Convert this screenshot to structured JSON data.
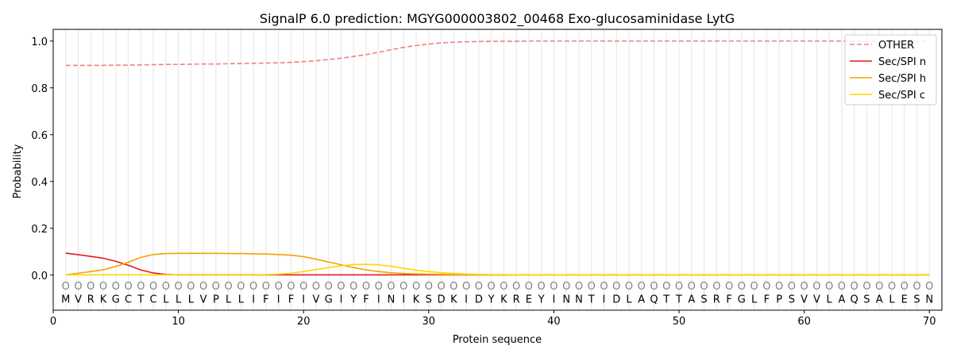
{
  "chart_data": {
    "type": "line",
    "title": "SignalP 6.0 prediction: MGYG000003802_00468 Exo-glucosaminidase LytG",
    "xlabel": "Protein sequence",
    "ylabel": "Probability",
    "xlim": [
      0,
      71
    ],
    "ylim": [
      -0.15,
      1.05
    ],
    "x_ticks": [
      0,
      10,
      20,
      30,
      40,
      50,
      60,
      70
    ],
    "y_ticks": [
      0.0,
      0.2,
      0.4,
      0.6,
      0.8,
      1.0
    ],
    "y_tick_labels": [
      "0.0",
      "0.2",
      "0.4",
      "0.6",
      "0.8",
      "1.0"
    ],
    "legend_position": "top-right",
    "sequence": [
      "M",
      "V",
      "R",
      "K",
      "G",
      "C",
      "T",
      "C",
      "L",
      "L",
      "L",
      "V",
      "P",
      "L",
      "L",
      "I",
      "F",
      "I",
      "F",
      "I",
      "V",
      "G",
      "I",
      "Y",
      "F",
      "I",
      "N",
      "I",
      "K",
      "S",
      "D",
      "K",
      "I",
      "D",
      "Y",
      "K",
      "R",
      "E",
      "Y",
      "I",
      "N",
      "N",
      "T",
      "I",
      "D",
      "L",
      "A",
      "Q",
      "T",
      "T",
      "A",
      "S",
      "R",
      "F",
      "G",
      "L",
      "F",
      "P",
      "S",
      "V",
      "V",
      "L",
      "A",
      "Q",
      "S",
      "A",
      "L",
      "E",
      "S",
      "N"
    ],
    "position_marker": "O",
    "series": [
      {
        "name": "OTHER",
        "color": "#f08080",
        "dashed": true,
        "values": [
          0.896,
          0.896,
          0.896,
          0.896,
          0.897,
          0.897,
          0.898,
          0.899,
          0.9,
          0.9,
          0.901,
          0.902,
          0.902,
          0.903,
          0.904,
          0.905,
          0.906,
          0.907,
          0.909,
          0.912,
          0.916,
          0.921,
          0.927,
          0.934,
          0.942,
          0.952,
          0.963,
          0.973,
          0.981,
          0.987,
          0.992,
          0.995,
          0.997,
          0.998,
          0.999,
          0.999,
          0.999,
          1.0,
          1.0,
          1.0,
          1.0,
          1.0,
          1.0,
          1.0,
          1.0,
          1.0,
          1.0,
          1.0,
          1.0,
          1.0,
          1.0,
          1.0,
          1.0,
          1.0,
          1.0,
          1.0,
          1.0,
          1.0,
          1.0,
          1.0,
          1.0,
          1.0,
          1.0,
          1.0,
          1.0,
          1.0,
          1.0,
          1.0,
          1.0,
          1.0
        ]
      },
      {
        "name": "Sec/SPI n",
        "color": "#e41a1c",
        "dashed": false,
        "values": [
          0.094,
          0.087,
          0.08,
          0.072,
          0.059,
          0.042,
          0.022,
          0.009,
          0.003,
          0.001,
          0.001,
          0.001,
          0.001,
          0.001,
          0.001,
          0.001,
          0.001,
          0.001,
          0.001,
          0.001,
          0.001,
          0.001,
          0.001,
          0.001,
          0.001,
          0.001,
          0.001,
          0.001,
          0.001,
          0.001,
          0.001,
          0.001,
          0.001,
          0.001,
          0.001,
          0.001,
          0.001,
          0.001,
          0.001,
          0.001,
          0.001,
          0.001,
          0.001,
          0.001,
          0.001,
          0.001,
          0.001,
          0.001,
          0.001,
          0.001,
          0.001,
          0.001,
          0.001,
          0.001,
          0.001,
          0.001,
          0.001,
          0.001,
          0.001,
          0.001,
          0.001,
          0.001,
          0.001,
          0.001,
          0.001,
          0.001,
          0.001,
          0.001,
          0.001,
          0.001
        ]
      },
      {
        "name": "Sec/SPI h",
        "color": "#f5a200",
        "dashed": false,
        "values": [
          0.001,
          0.008,
          0.015,
          0.023,
          0.037,
          0.055,
          0.076,
          0.088,
          0.092,
          0.093,
          0.093,
          0.093,
          0.093,
          0.092,
          0.092,
          0.091,
          0.09,
          0.088,
          0.085,
          0.079,
          0.068,
          0.056,
          0.044,
          0.032,
          0.022,
          0.015,
          0.01,
          0.007,
          0.005,
          0.004,
          0.003,
          0.002,
          0.002,
          0.001,
          0.001,
          0.001,
          0.001,
          0.001,
          0.001,
          0.001,
          0.001,
          0.001,
          0.001,
          0.001,
          0.001,
          0.001,
          0.001,
          0.001,
          0.001,
          0.001,
          0.001,
          0.001,
          0.001,
          0.001,
          0.001,
          0.001,
          0.001,
          0.001,
          0.001,
          0.001,
          0.001,
          0.001,
          0.001,
          0.001,
          0.001,
          0.001,
          0.001,
          0.001,
          0.001,
          0.001
        ]
      },
      {
        "name": "Sec/SPI c",
        "color": "#ffd700",
        "dashed": false,
        "values": [
          0.001,
          0.001,
          0.001,
          0.001,
          0.001,
          0.001,
          0.001,
          0.001,
          0.001,
          0.001,
          0.001,
          0.001,
          0.001,
          0.001,
          0.001,
          0.001,
          0.002,
          0.004,
          0.008,
          0.015,
          0.024,
          0.032,
          0.04,
          0.045,
          0.046,
          0.044,
          0.038,
          0.029,
          0.021,
          0.015,
          0.01,
          0.007,
          0.005,
          0.003,
          0.002,
          0.002,
          0.001,
          0.001,
          0.001,
          0.001,
          0.001,
          0.001,
          0.001,
          0.001,
          0.001,
          0.001,
          0.001,
          0.001,
          0.001,
          0.001,
          0.001,
          0.001,
          0.001,
          0.001,
          0.001,
          0.001,
          0.001,
          0.001,
          0.001,
          0.001,
          0.001,
          0.001,
          0.001,
          0.001,
          0.001,
          0.001,
          0.001,
          0.001,
          0.001,
          0.001
        ]
      }
    ]
  }
}
